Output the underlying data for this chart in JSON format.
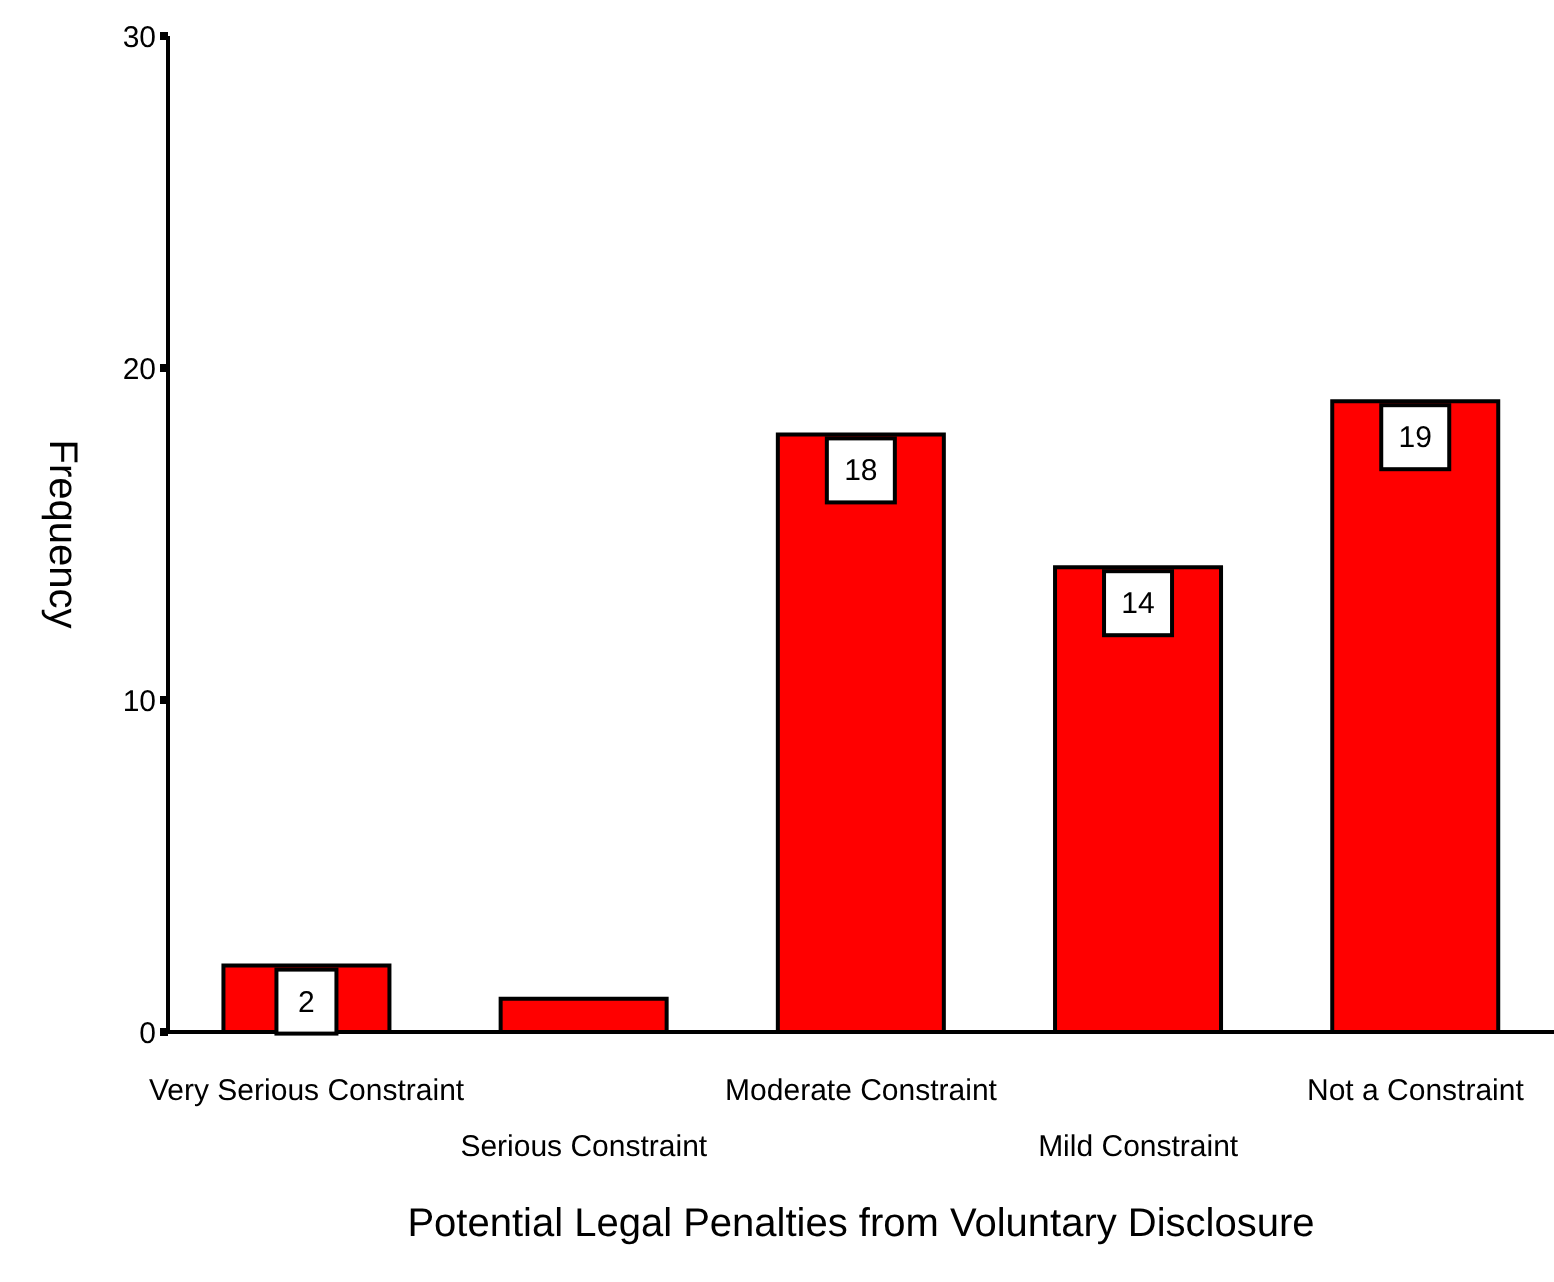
{
  "chart_data": {
    "type": "bar",
    "xlabel": "Potential Legal Penalties from Voluntary Disclosure",
    "ylabel": "Frequency",
    "categories": [
      "Very Serious Constraint",
      "Serious Constraint",
      "Moderate Constraint",
      "Mild Constraint",
      "Not a Constraint"
    ],
    "values": [
      2,
      1,
      18,
      14,
      19
    ],
    "value_labels": [
      "2",
      null,
      "18",
      "14",
      "19"
    ],
    "color": "#ff0000",
    "ylim": [
      0,
      30
    ],
    "yticks": [
      0,
      10,
      20,
      30
    ],
    "grid": false
  }
}
